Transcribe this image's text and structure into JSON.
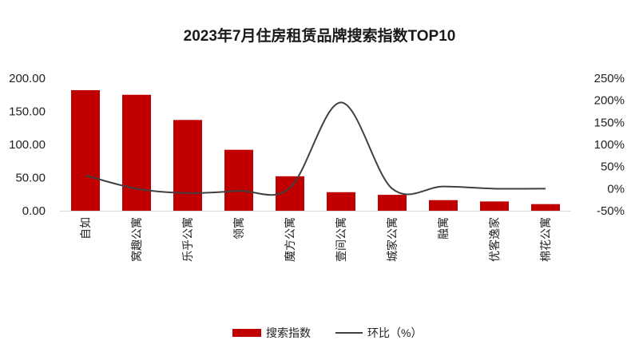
{
  "chart_data": {
    "type": "bar",
    "title": "2023年7月住房租赁品牌搜索指数TOP10",
    "categories": [
      "自如",
      "窝趣公寓",
      "乐乎公寓",
      "领寓",
      "魔方公寓",
      "壹间公寓",
      "城家公寓",
      "融寓",
      "优客逸家",
      "棉花公寓"
    ],
    "series": [
      {
        "name": "搜索指数",
        "type": "bar",
        "axis": "left",
        "values": [
          182,
          175,
          137,
          92,
          52,
          28,
          24,
          16,
          14,
          10
        ]
      },
      {
        "name": "环比（%）",
        "type": "line",
        "axis": "right",
        "values": [
          30,
          0,
          -10,
          -5,
          2,
          195,
          0,
          5,
          0,
          0
        ]
      }
    ],
    "y_left": {
      "min": 0,
      "max": 200,
      "ticks": [
        "0.00",
        "50.00",
        "100.00",
        "150.00",
        "200.00"
      ]
    },
    "y_right": {
      "min": -50,
      "max": 250,
      "ticks": [
        "-50%",
        "0%",
        "50%",
        "100%",
        "150%",
        "200%",
        "250%"
      ]
    },
    "legend_position": "bottom",
    "grid": false,
    "colors": {
      "bar": "#c00000",
      "line": "#404040"
    }
  }
}
